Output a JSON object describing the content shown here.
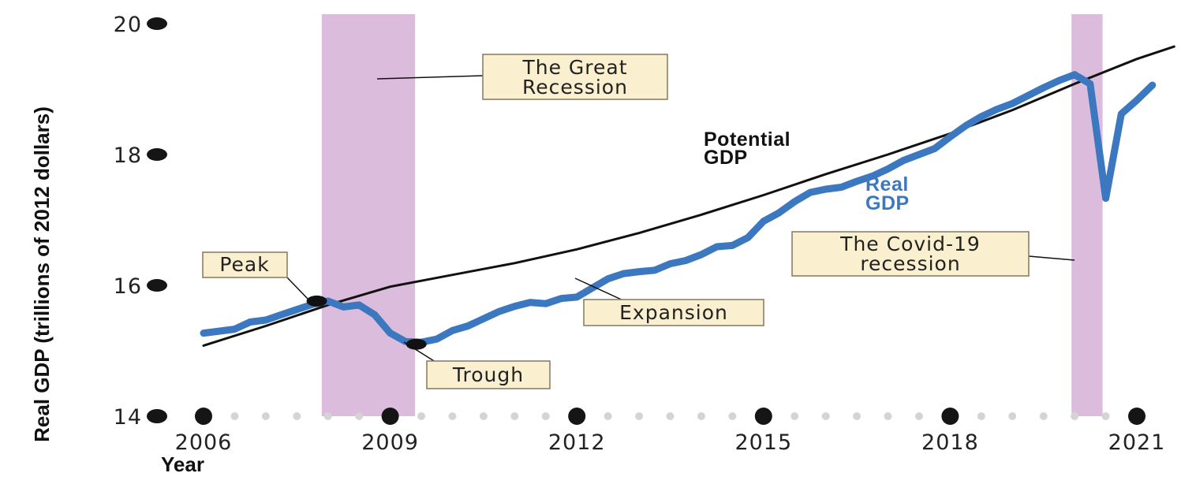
{
  "chart_data": {
    "type": "line",
    "ylabel": "Real GDP (trillions of 2012 dollars)",
    "xlabel": "Year",
    "x_ticks": [
      "2006",
      "2009",
      "2012",
      "2015",
      "2018",
      "2021"
    ],
    "y_ticks": [
      "14",
      "16",
      "18",
      "20"
    ],
    "ylim": [
      14,
      20
    ],
    "xlim": [
      2006,
      2021.5
    ],
    "grid": false,
    "recessions": [
      {
        "name": "The Great Recession",
        "start": 2007.9,
        "end": 2009.4
      },
      {
        "name": "The Covid-19 recession",
        "start": 2019.95,
        "end": 2020.45
      }
    ],
    "series": [
      {
        "name": "Potential GDP",
        "color": "#111111",
        "x": [
          2006.0,
          2007.0,
          2008.0,
          2009.0,
          2010.0,
          2011.0,
          2012.0,
          2013.0,
          2014.0,
          2015.0,
          2016.0,
          2017.0,
          2018.0,
          2019.0,
          2020.0,
          2021.0,
          2021.6
        ],
        "values": [
          15.08,
          15.38,
          15.7,
          15.98,
          16.16,
          16.34,
          16.55,
          16.8,
          17.08,
          17.38,
          17.7,
          18.0,
          18.32,
          18.68,
          19.08,
          19.46,
          19.65
        ]
      },
      {
        "name": "Real GDP",
        "color": "#3b78c0",
        "x": [
          2006.0,
          2006.25,
          2006.5,
          2006.75,
          2007.0,
          2007.25,
          2007.5,
          2007.75,
          2008.0,
          2008.25,
          2008.5,
          2008.75,
          2009.0,
          2009.25,
          2009.5,
          2009.75,
          2010.0,
          2010.25,
          2010.5,
          2010.75,
          2011.0,
          2011.25,
          2011.5,
          2011.75,
          2012.0,
          2012.25,
          2012.5,
          2012.75,
          2013.0,
          2013.25,
          2013.5,
          2013.75,
          2014.0,
          2014.25,
          2014.5,
          2014.75,
          2015.0,
          2015.25,
          2015.5,
          2015.75,
          2016.0,
          2016.25,
          2016.5,
          2016.75,
          2017.0,
          2017.25,
          2017.5,
          2017.75,
          2018.0,
          2018.25,
          2018.5,
          2018.75,
          2019.0,
          2019.25,
          2019.5,
          2019.75,
          2020.0,
          2020.25,
          2020.5,
          2020.75,
          2021.0,
          2021.25
        ],
        "values": [
          15.27,
          15.3,
          15.33,
          15.44,
          15.47,
          15.55,
          15.63,
          15.71,
          15.76,
          15.67,
          15.7,
          15.55,
          15.27,
          15.14,
          15.13,
          15.18,
          15.31,
          15.38,
          15.49,
          15.6,
          15.68,
          15.74,
          15.72,
          15.8,
          15.82,
          15.96,
          16.1,
          16.18,
          16.21,
          16.23,
          16.33,
          16.38,
          16.47,
          16.59,
          16.61,
          16.73,
          16.98,
          17.11,
          17.28,
          17.42,
          17.47,
          17.5,
          17.59,
          17.67,
          17.78,
          17.91,
          18.0,
          18.09,
          18.27,
          18.44,
          18.58,
          18.69,
          18.78,
          18.9,
          19.02,
          19.13,
          19.22,
          19.08,
          17.33,
          18.62,
          18.83,
          19.06
        ]
      }
    ],
    "points": [
      {
        "label": "Peak",
        "x": 2007.82,
        "y": 15.76
      },
      {
        "label": "Trough",
        "x": 2009.42,
        "y": 15.1
      }
    ],
    "annotations": {
      "great_recession_line1": "The Great",
      "great_recession_line2": "Recession",
      "covid_line1": "The Covid-19",
      "covid_line2": "recession",
      "peak": "Peak",
      "trough": "Trough",
      "expansion": "Expansion",
      "potential_line1": "Potential",
      "potential_line2": "GDP",
      "real_line1": "Real",
      "real_line2": "GDP"
    },
    "colors": {
      "recession_band": "#dcbcdc",
      "real_gdp": "#3b78c0",
      "potential_gdp": "#111111",
      "label_box": "#faefcf",
      "major_dot": "#151515",
      "minor_dot": "#d4d4d4"
    }
  }
}
